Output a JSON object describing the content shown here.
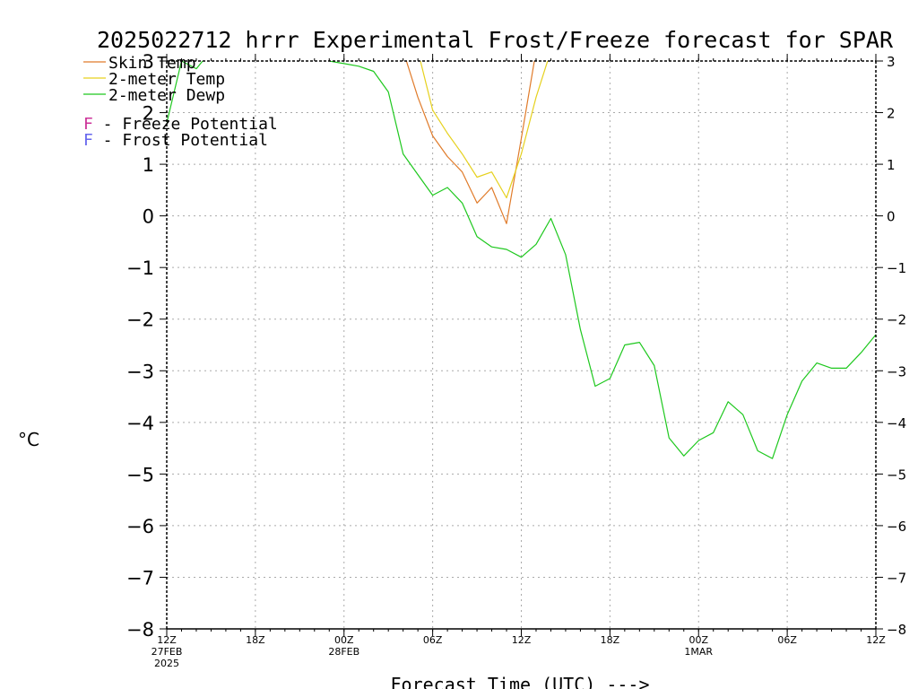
{
  "chart_data": {
    "type": "line",
    "title": "2025022712 hrrr Experimental Frost/Freeze forecast for SPAR",
    "ylabel": "°C",
    "xlabel": "Forecast Time (UTC) --->",
    "ylim": [
      -8,
      3
    ],
    "xlim": [
      0,
      48
    ],
    "grid": true,
    "legend_position": "top-left",
    "y_ticks": [
      3,
      2,
      1,
      0,
      -1,
      -2,
      -3,
      -4,
      -5,
      -6,
      -7,
      -8
    ],
    "y_tick_labels": [
      "3",
      "2",
      "1",
      "0",
      "−1",
      "−2",
      "−3",
      "−4",
      "−5",
      "−6",
      "−7",
      "−8"
    ],
    "x_ticks": [
      {
        "x": 0,
        "lines": [
          "12Z",
          "27FEB",
          "2025"
        ]
      },
      {
        "x": 6,
        "lines": [
          "18Z"
        ]
      },
      {
        "x": 12,
        "lines": [
          "00Z",
          "28FEB"
        ]
      },
      {
        "x": 18,
        "lines": [
          "06Z"
        ]
      },
      {
        "x": 24,
        "lines": [
          "12Z"
        ]
      },
      {
        "x": 30,
        "lines": [
          "18Z"
        ]
      },
      {
        "x": 36,
        "lines": [
          "00Z",
          "1MAR"
        ]
      },
      {
        "x": 42,
        "lines": [
          "06Z"
        ]
      },
      {
        "x": 48,
        "lines": [
          "12Z"
        ]
      }
    ],
    "legend": [
      {
        "label": "Skin Temp",
        "color": "#e07b2a"
      },
      {
        "label": "2-meter Temp",
        "color": "#e6d11e"
      },
      {
        "label": "2-meter Dewp",
        "color": "#1ec81e"
      }
    ],
    "legend_notes": [
      {
        "letter": "F",
        "rest": " - Freeze Potential",
        "color": "#cc3399"
      },
      {
        "letter": "F",
        "rest": " - Frost Potential",
        "color": "#6666ee"
      }
    ],
    "series": [
      {
        "name": "Skin Temp",
        "color": "#e07b2a",
        "x": [
          16,
          17,
          18,
          19,
          20,
          21,
          22,
          23,
          24,
          25
        ],
        "y": [
          3.2,
          2.3,
          1.55,
          1.15,
          0.85,
          0.25,
          0.55,
          -0.15,
          1.5,
          3.2
        ]
      },
      {
        "name": "2-meter Temp",
        "color": "#e6d11e",
        "x": [
          17,
          18,
          19,
          20,
          21,
          22,
          23,
          24,
          25,
          26
        ],
        "y": [
          3.2,
          2.05,
          1.6,
          1.2,
          0.75,
          0.85,
          0.35,
          1.2,
          2.3,
          3.2
        ]
      },
      {
        "name": "2-meter Dewp",
        "color": "#1ec81e",
        "x": [
          0,
          1,
          2,
          3,
          4,
          5,
          6,
          7,
          8,
          9,
          10,
          11,
          12,
          13,
          14,
          15,
          16,
          17,
          18,
          19,
          20,
          21,
          22,
          23,
          24,
          25,
          26,
          27,
          28,
          29,
          30,
          31,
          32,
          33,
          34,
          35,
          36,
          37,
          38,
          39,
          40,
          41,
          42,
          43,
          44,
          45,
          46,
          47,
          48
        ],
        "y": [
          1.8,
          3.0,
          2.85,
          3.2,
          3.2,
          3.2,
          3.2,
          3.2,
          3.2,
          3.2,
          3.2,
          3.0,
          2.95,
          2.9,
          2.8,
          2.4,
          1.2,
          0.8,
          0.4,
          0.55,
          0.25,
          -0.4,
          -0.6,
          -0.65,
          -0.8,
          -0.55,
          -0.05,
          -0.75,
          -2.2,
          -3.3,
          -3.15,
          -2.5,
          -2.45,
          -2.9,
          -4.3,
          -4.65,
          -4.35,
          -4.2,
          -3.6,
          -3.85,
          -4.55,
          -4.7,
          -3.85,
          -3.2,
          -2.85,
          -2.95,
          -2.95,
          -2.65,
          -2.3
        ]
      }
    ]
  }
}
